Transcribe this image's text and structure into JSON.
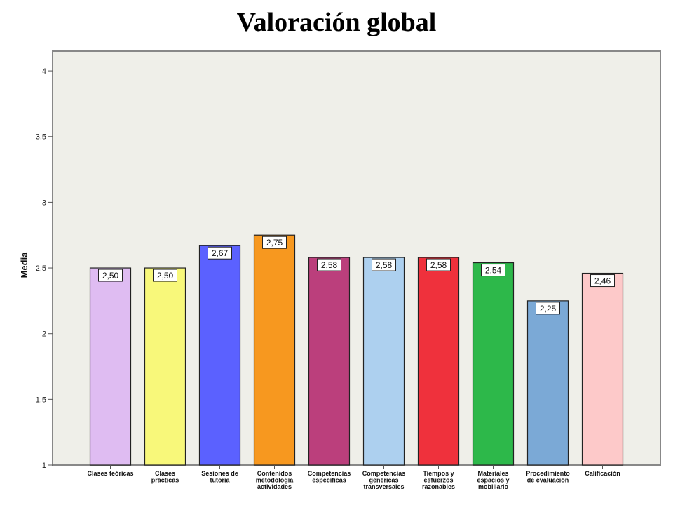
{
  "chart_data": {
    "type": "bar",
    "title": "Valoración global",
    "xlabel": "",
    "ylabel": "Media",
    "ylim": [
      1,
      4.15
    ],
    "yticks": [
      1,
      1.5,
      2,
      2.5,
      3,
      3.5,
      4
    ],
    "ytick_labels": [
      "1",
      "1,5",
      "2",
      "2,5",
      "3",
      "3,5",
      "4"
    ],
    "categories": [
      [
        "Clases teóricas"
      ],
      [
        "Clases",
        "prácticas"
      ],
      [
        "Sesiones de",
        "tutoría"
      ],
      [
        "Contenidos",
        "metodología",
        "actividades"
      ],
      [
        "Competencias",
        "específicas"
      ],
      [
        "Competencias",
        "genéricas",
        "transversales"
      ],
      [
        "Tiempos y",
        "esfuerzos",
        "razonables"
      ],
      [
        "Materiales",
        "espacios y",
        "mobiliario"
      ],
      [
        "Procedimiento",
        "de evaluación"
      ],
      [
        "Calificación"
      ]
    ],
    "values": [
      2.5,
      2.5,
      2.67,
      2.75,
      2.58,
      2.58,
      2.58,
      2.54,
      2.25,
      2.46
    ],
    "value_labels": [
      "2,50",
      "2,50",
      "2,67",
      "2,75",
      "2,58",
      "2,58",
      "2,58",
      "2,54",
      "2,25",
      "2,46"
    ],
    "colors": [
      "#dfbcf2",
      "#f8f87a",
      "#5b61ff",
      "#f7981f",
      "#bb3f7c",
      "#add0ef",
      "#ef313c",
      "#2db84a",
      "#7ba9d6",
      "#fdc9c9"
    ],
    "plot_background": "#efefe9",
    "grid": false,
    "legend": "none"
  }
}
